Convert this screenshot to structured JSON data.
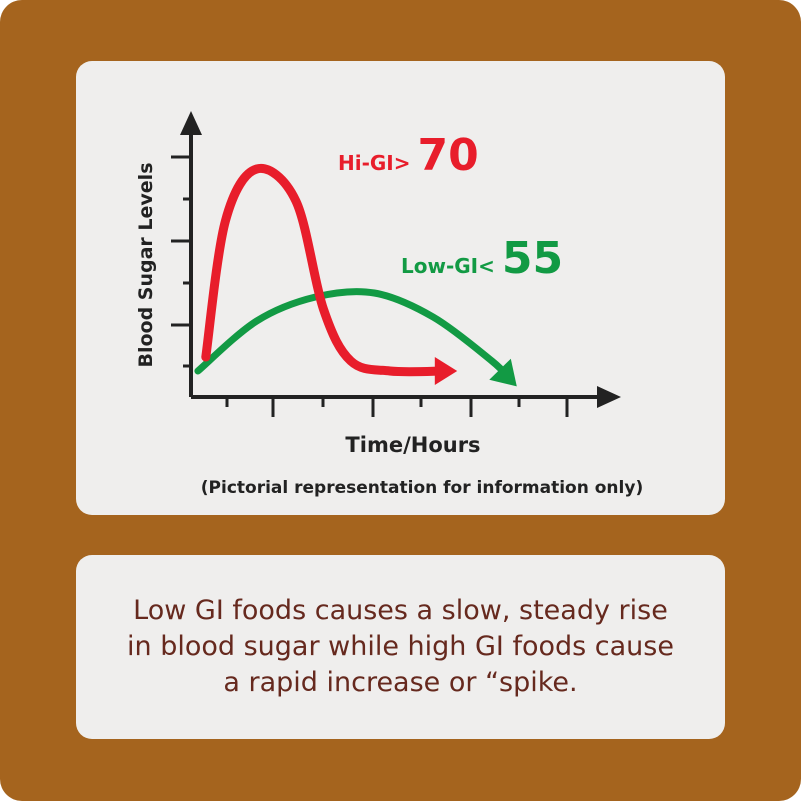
{
  "colors": {
    "frame": "#a5641e",
    "panel": "#efeeed",
    "axis": "#222222",
    "high_gi": "#e81d2b",
    "low_gi": "#129a44",
    "caption_text": "#66291e"
  },
  "chart_data": {
    "type": "line",
    "xlabel": "Time/Hours",
    "ylabel": "Blood Sugar Levels",
    "note": "(Pictorial representation for information only)",
    "axes_numbered": false,
    "xlim": [
      0,
      10
    ],
    "ylim": [
      0,
      6
    ],
    "series": [
      {
        "name": "Hi-GI",
        "label_prefix": "Hi-GI>",
        "label_value": "70",
        "color": "#e81d2b",
        "x": [
          0.3,
          0.8,
          1.6,
          2.6,
          3.3,
          4.0,
          5.0,
          6.4
        ],
        "y": [
          0.6,
          4.0,
          5.3,
          4.5,
          1.8,
          0.5,
          0.25,
          0.25
        ]
      },
      {
        "name": "Low-GI",
        "label_prefix": "Low-GI<",
        "label_value": "55",
        "color": "#129a44",
        "x": [
          0.1,
          1.6,
          3.1,
          4.6,
          6.1,
          7.6,
          8.0
        ],
        "y": [
          0.25,
          1.5,
          2.1,
          2.2,
          1.6,
          0.5,
          0.1
        ]
      }
    ]
  },
  "caption": {
    "lines": [
      "Low GI foods causes a slow, steady rise",
      "in blood sugar while high GI foods cause",
      "a rapid increase or “spike."
    ]
  }
}
